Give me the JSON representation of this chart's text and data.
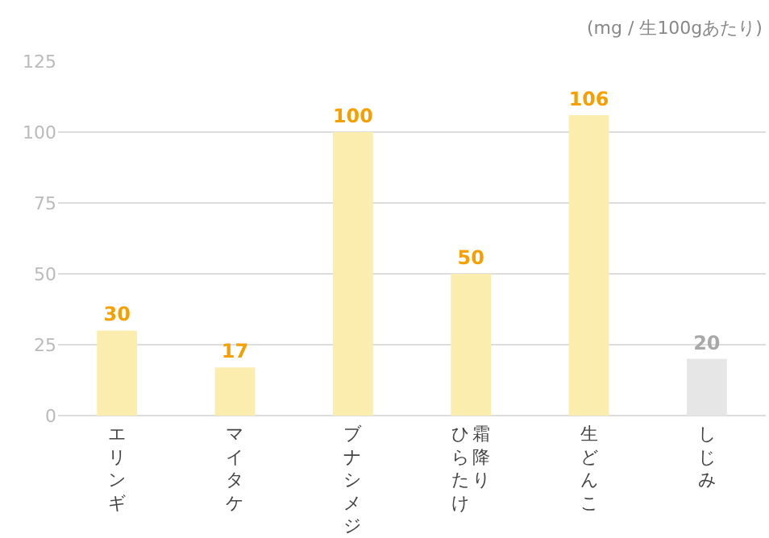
{
  "chart_data": {
    "type": "bar",
    "categories": [
      "エリンギ",
      "マイタケ",
      "ブナシメジ",
      "霜降りひらたけ",
      "生どんこ",
      "しじみ"
    ],
    "values": [
      30,
      17,
      100,
      50,
      106,
      20
    ],
    "colors": [
      "#faedae",
      "#faedae",
      "#faedae",
      "#faedae",
      "#faedae",
      "#e6e6e6"
    ],
    "ylim": [
      0,
      125
    ],
    "yticks": [
      0,
      25,
      50,
      75,
      100,
      125
    ],
    "grid": "y",
    "data_labels": true,
    "annotations": [
      "(mg / 生100gあたり)"
    ]
  }
}
